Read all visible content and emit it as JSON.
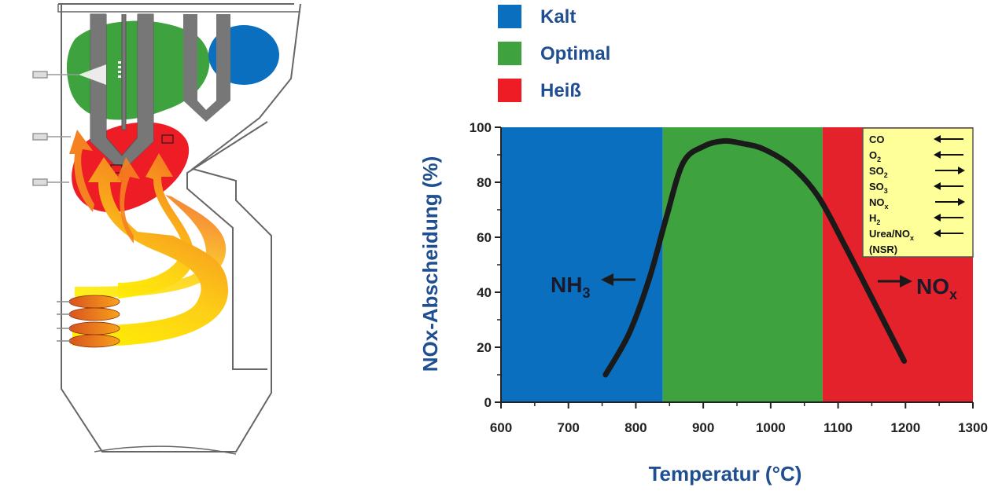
{
  "legend": [
    {
      "label": "Kalt",
      "color": "#0b6fbf"
    },
    {
      "label": "Optimal",
      "color": "#3ea33e"
    },
    {
      "label": "Heiß",
      "color": "#ee1c25"
    }
  ],
  "chart_data": {
    "type": "line",
    "xlabel": "Temperatur (°C)",
    "ylabel": "NOx-Abscheidung  (%)",
    "xlim": [
      600,
      1300
    ],
    "ylim": [
      0,
      100
    ],
    "x_ticks": [
      600,
      700,
      800,
      900,
      1000,
      1100,
      1200,
      1300
    ],
    "y_ticks": [
      0,
      20,
      40,
      60,
      80,
      100
    ],
    "regions": [
      {
        "legend": "Kalt",
        "from": 600,
        "to": 840,
        "color": "#0b6fbf"
      },
      {
        "legend": "Optimal",
        "from": 840,
        "to": 1077,
        "color": "#3ea33e"
      },
      {
        "legend": "Heiß",
        "from": 1077,
        "to": 1300,
        "color": "#e3222b"
      }
    ],
    "series": [
      {
        "color": "#1a1a1a",
        "x": [
          755,
          790,
          820,
          845,
          870,
          900,
          930,
          960,
          990,
          1030,
          1070,
          1110,
          1150,
          1198
        ],
        "y": [
          10,
          25,
          45,
          67,
          87,
          93,
          95,
          94,
          92,
          86,
          75,
          57,
          38,
          15
        ]
      }
    ],
    "annotations": {
      "left": {
        "text": "NH",
        "sub": "3",
        "direction": "left"
      },
      "right": {
        "text": "NO",
        "sub": "x",
        "direction": "right"
      }
    },
    "effects_box": {
      "background": "#ffff99",
      "items": [
        {
          "label": "CO",
          "sub": "",
          "direction": "left"
        },
        {
          "label": "O",
          "sub": "2",
          "direction": "left"
        },
        {
          "label": "SO",
          "sub": "2",
          "direction": "right"
        },
        {
          "label": "SO",
          "sub": "3",
          "direction": "left"
        },
        {
          "label": "NO",
          "sub": "x",
          "direction": "right"
        },
        {
          "label": "H",
          "sub": "2",
          "direction": "left"
        },
        {
          "label": "Urea/NO",
          "sub": "x",
          "direction": "left"
        },
        {
          "label": "(NSR)",
          "sub": "",
          "direction": ""
        }
      ]
    }
  }
}
